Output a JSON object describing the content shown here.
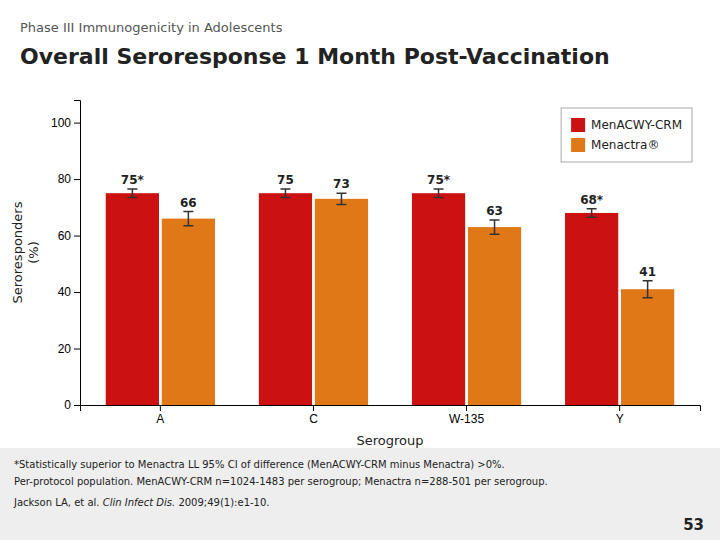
{
  "chart_data": {
    "type": "bar",
    "subtitle": "Phase III Immunogenicity in Adolescents",
    "title": "Overall Seroresponse 1 Month Post-Vaccination",
    "xlabel": "Serogroup",
    "ylabel": "Seroresponders\n(%)",
    "categories": [
      "A",
      "C",
      "W-135",
      "Y"
    ],
    "series": [
      {
        "name": "MenACWY-CRM",
        "color": "#CC1111",
        "values": [
          75,
          75,
          75,
          68
        ],
        "errors": [
          1.5,
          1.5,
          1.5,
          1.5
        ],
        "value_labels": [
          "75*",
          "75",
          "75*",
          "68*"
        ]
      },
      {
        "name": "Menactra®",
        "color": "#E07818",
        "values": [
          66,
          73,
          63,
          41
        ],
        "errors": [
          2.5,
          2.0,
          2.5,
          3.0
        ]
      }
    ],
    "ylim": [
      0,
      108
    ],
    "yticks": [
      0,
      20,
      40,
      60,
      80,
      100
    ],
    "grid": false,
    "legend": "upper right",
    "data_labels": true,
    "annotations": [
      "*Statistically superior to Menactra LL 95% CI of difference (MenACWY-CRM minus Menactra) >0%.",
      "Per-protocol population. MenACWY-CRM n=1024-1483 per serogroup; Menactra n=288-501 per serogroup.",
      "Jackson LA, et al. ",
      "Clin Infect Dis.",
      " 2009;49(1):e1-10.",
      "53"
    ]
  }
}
